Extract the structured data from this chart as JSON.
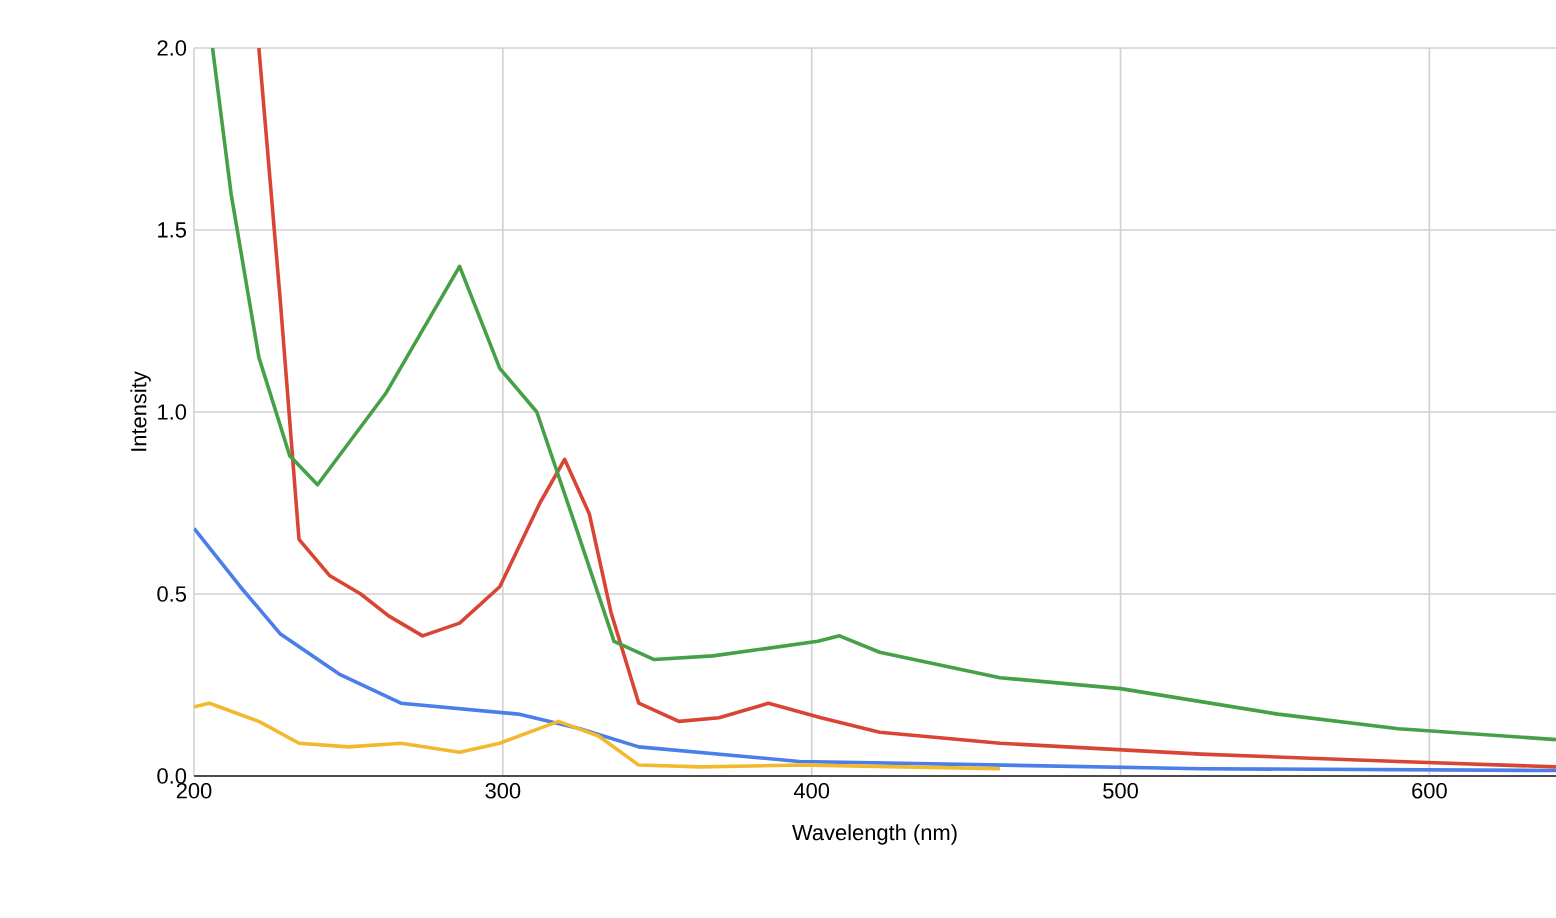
{
  "chart_data": {
    "type": "line",
    "xlabel": "Wavelength (nm)",
    "ylabel": "Intensity",
    "xlim": [
      200,
      641
    ],
    "xticks": [
      200,
      300,
      400,
      500,
      600
    ],
    "ylim": [
      0,
      2
    ],
    "yticks": [
      {
        "value": 0,
        "label": "0.0"
      },
      {
        "value": 0.5,
        "label": "0.5"
      },
      {
        "value": 1,
        "label": "1.0"
      },
      {
        "value": 1.5,
        "label": "1.5"
      },
      {
        "value": 2,
        "label": "2.0"
      }
    ],
    "grid": true,
    "marker": "none",
    "line_style": "solid",
    "series": [
      {
        "color": "#4a7ee8",
        "x": [
          200,
          215,
          228,
          247,
          267,
          286,
          305,
          325,
          344,
          396,
          461,
          526,
          641
        ],
        "values": [
          0.68,
          0.52,
          0.39,
          0.28,
          0.2,
          0.185,
          0.17,
          0.13,
          0.08,
          0.04,
          0.03,
          0.02,
          0.015
        ]
      },
      {
        "color": "#f2b92f",
        "x": [
          200,
          205,
          221,
          234,
          250,
          267,
          286,
          299,
          318,
          331,
          344,
          364,
          396,
          429,
          461
        ],
        "values": [
          0.19,
          0.2,
          0.15,
          0.09,
          0.08,
          0.09,
          0.065,
          0.09,
          0.15,
          0.11,
          0.03,
          0.025,
          0.03,
          0.025,
          0.02
        ]
      },
      {
        "color": "#d94535",
        "x": [
          221,
          228,
          234,
          244,
          254,
          263,
          274,
          286,
          299,
          312,
          320,
          328,
          335,
          344,
          357,
          370,
          386,
          403,
          422,
          461,
          526,
          590,
          641
        ],
        "values": [
          2.0,
          1.3,
          0.65,
          0.55,
          0.5,
          0.44,
          0.385,
          0.42,
          0.52,
          0.75,
          0.87,
          0.72,
          0.45,
          0.2,
          0.15,
          0.16,
          0.2,
          0.16,
          0.12,
          0.09,
          0.06,
          0.04,
          0.025
        ]
      },
      {
        "color": "#46a048",
        "x": [
          206,
          212,
          221,
          231,
          240,
          262,
          286,
          299,
          311,
          323,
          336,
          349,
          368,
          402,
          409,
          422,
          461,
          500,
          551,
          590,
          641
        ],
        "values": [
          2.0,
          1.6,
          1.15,
          0.88,
          0.8,
          1.05,
          1.4,
          1.12,
          1.0,
          0.7,
          0.37,
          0.32,
          0.33,
          0.37,
          0.385,
          0.34,
          0.27,
          0.24,
          0.17,
          0.13,
          0.1
        ]
      }
    ]
  }
}
